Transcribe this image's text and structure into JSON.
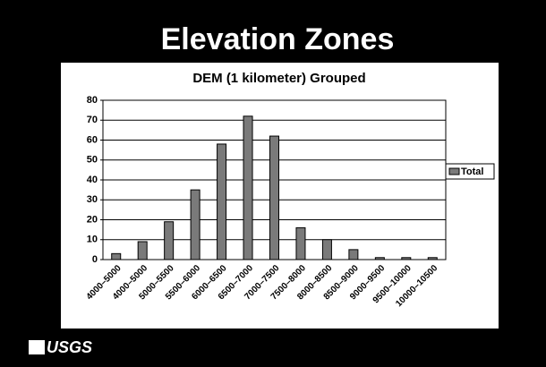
{
  "slide_title": "Elevation Zones",
  "logo": "USGS",
  "chart_data": {
    "type": "bar",
    "title": "DEM (1 kilometer) Grouped",
    "categories": [
      "4000–5000",
      "4000–5000",
      "5000–5500",
      "5500–6000",
      "6000–6500",
      "6500–7000",
      "7000–7500",
      "7500–8000",
      "8000–8500",
      "8500–9000",
      "9000–9500",
      "9500–10000",
      "10000–10500"
    ],
    "series": [
      {
        "name": "Total",
        "color": "#7a7a7a",
        "values": [
          3,
          9,
          19,
          35,
          58,
          72,
          62,
          16,
          10,
          5,
          1,
          1,
          1
        ]
      }
    ],
    "ylim": [
      0,
      80
    ],
    "yticks": [
      0,
      10,
      20,
      30,
      40,
      50,
      60,
      70,
      80
    ],
    "grid": true,
    "legend": "right"
  }
}
